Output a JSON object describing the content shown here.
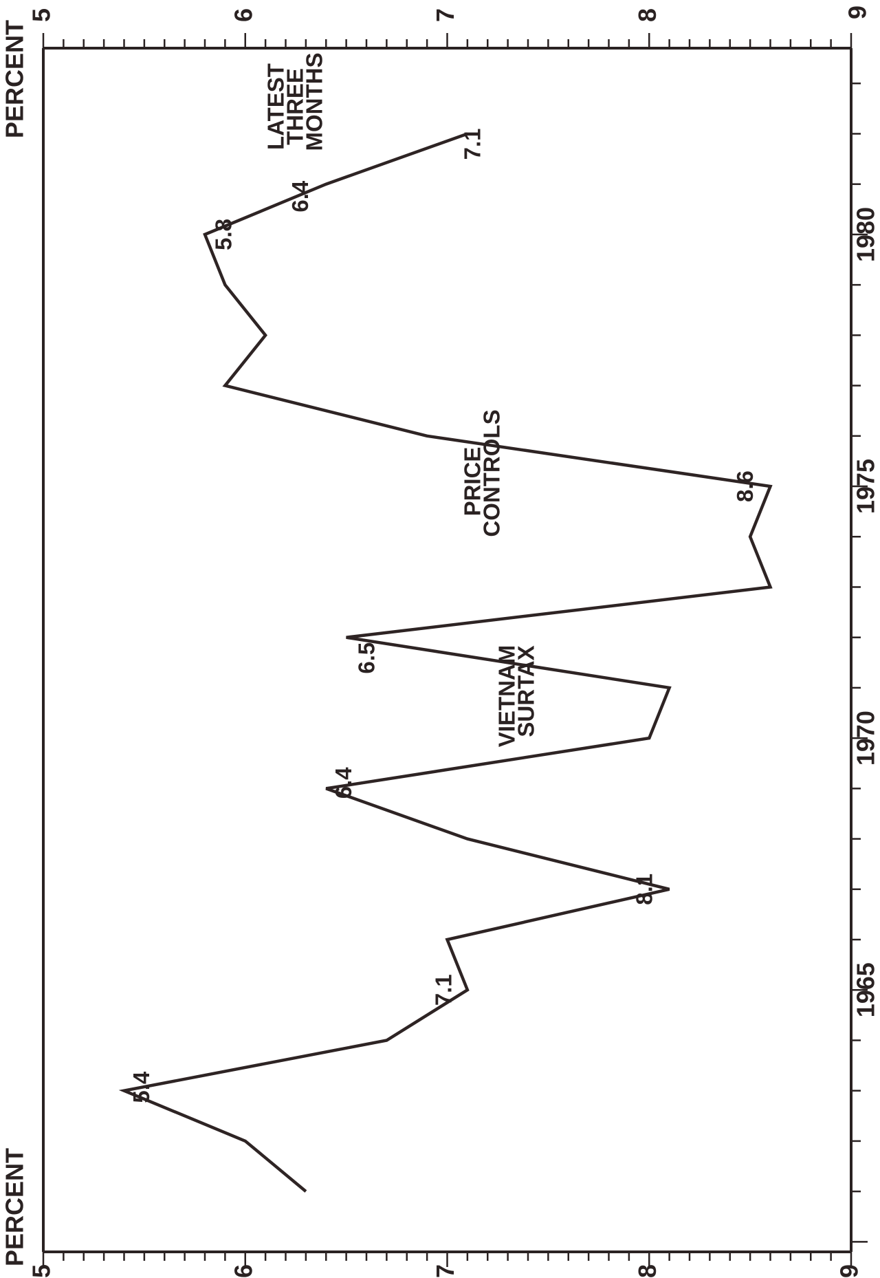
{
  "chart_data": {
    "type": "line",
    "title": "",
    "axis_unit_label": "PERCENT",
    "y_ticks": [
      5,
      6,
      7,
      8,
      9
    ],
    "ylim": [
      5,
      9
    ],
    "x_ticks": [
      1965,
      1970,
      1975,
      1980
    ],
    "xlim": [
      1959.8,
      1983.7
    ],
    "series": [
      {
        "x": [
          1961,
          1962,
          1963,
          1964,
          1965,
          1966,
          1967,
          1968,
          1969,
          1970,
          1971,
          1972,
          1973,
          1974,
          1975,
          1976,
          1977,
          1978,
          1979,
          1980,
          1981,
          1982
        ],
        "y": [
          6.3,
          6.0,
          5.4,
          6.7,
          7.1,
          7.0,
          8.1,
          7.1,
          6.4,
          8.0,
          8.1,
          6.5,
          8.6,
          8.5,
          8.6,
          6.9,
          5.9,
          6.1,
          5.9,
          5.8,
          6.4,
          7.1
        ]
      }
    ],
    "data_labels": [
      {
        "text": "5.4",
        "x": 1963
      },
      {
        "text": "7.1",
        "x": 1965
      },
      {
        "text": "8.1",
        "x": 1967
      },
      {
        "text": "6.4",
        "x": 1969
      },
      {
        "text": "6.5",
        "x": 1972
      },
      {
        "text": "8.6",
        "x": 1975
      },
      {
        "text": "5.8",
        "x": 1980
      },
      {
        "text": "6.4",
        "x": 1981
      },
      {
        "text": "7.1",
        "x": 1982
      }
    ],
    "annotations": {
      "vietnam": [
        "VIETNAM",
        "SURTAX"
      ],
      "price_controls": [
        "PRICE",
        "CONTROLS"
      ],
      "latest": [
        "LATEST",
        "THREE",
        "MONTHS"
      ]
    }
  }
}
